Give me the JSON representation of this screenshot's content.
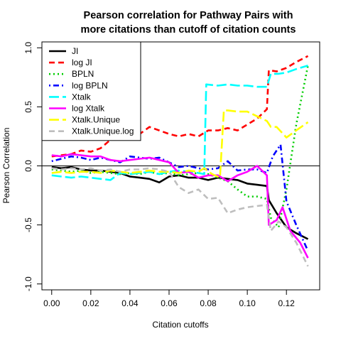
{
  "chart_data": {
    "type": "line",
    "title": "Pearson correlation for Pathway Pairs with",
    "subtitle": "more citations than cutoff of citation counts",
    "xlabel": "Citation cutoffs",
    "ylabel": "Pearson Correlation",
    "xlim": [
      -0.005,
      0.137
    ],
    "ylim": [
      -1.05,
      1.05
    ],
    "x_ticks": [
      "0.00",
      "0.02",
      "0.04",
      "0.06",
      "0.08",
      "0.10",
      "0.12"
    ],
    "x_tick_values": [
      0,
      0.02,
      0.04,
      0.06,
      0.08,
      0.1,
      0.12
    ],
    "y_ticks": [
      "-1.0",
      "-0.5",
      "0.0",
      "0.5",
      "1.0"
    ],
    "y_tick_values": [
      -1,
      -0.5,
      0,
      0.5,
      1
    ],
    "reference_line_y": 0,
    "legend_position": "top-left",
    "series": [
      {
        "name": "JI",
        "color": "#000000",
        "dash": "solid",
        "x": [
          0,
          0.005,
          0.01,
          0.015,
          0.02,
          0.025,
          0.03,
          0.035,
          0.04,
          0.045,
          0.05,
          0.055,
          0.06,
          0.065,
          0.07,
          0.075,
          0.08,
          0.085,
          0.09,
          0.095,
          0.1,
          0.105,
          0.11,
          0.111,
          0.115,
          0.12,
          0.125,
          0.131
        ],
        "y": [
          -0.01,
          -0.02,
          -0.01,
          -0.03,
          -0.04,
          -0.04,
          -0.05,
          -0.06,
          -0.09,
          -0.1,
          -0.11,
          -0.14,
          -0.09,
          -0.08,
          -0.1,
          -0.1,
          -0.12,
          -0.1,
          -0.11,
          -0.12,
          -0.15,
          -0.16,
          -0.17,
          -0.29,
          -0.4,
          -0.52,
          -0.57,
          -0.62
        ]
      },
      {
        "name": "log JI",
        "color": "#ff0000",
        "dash": "dashed",
        "x": [
          0,
          0.005,
          0.01,
          0.015,
          0.02,
          0.025,
          0.03,
          0.035,
          0.04,
          0.045,
          0.05,
          0.055,
          0.06,
          0.065,
          0.07,
          0.075,
          0.08,
          0.085,
          0.09,
          0.095,
          0.1,
          0.105,
          0.11,
          0.111,
          0.115,
          0.12,
          0.125,
          0.131
        ],
        "y": [
          0.08,
          0.09,
          0.1,
          0.13,
          0.12,
          0.15,
          0.22,
          0.25,
          0.28,
          0.27,
          0.33,
          0.3,
          0.27,
          0.25,
          0.27,
          0.25,
          0.3,
          0.3,
          0.32,
          0.3,
          0.35,
          0.4,
          0.48,
          0.81,
          0.8,
          0.83,
          0.88,
          0.93
        ]
      },
      {
        "name": "BPLN",
        "color": "#00cd00",
        "dash": "dotted",
        "x": [
          0,
          0.005,
          0.01,
          0.015,
          0.02,
          0.025,
          0.03,
          0.035,
          0.04,
          0.045,
          0.05,
          0.055,
          0.06,
          0.065,
          0.07,
          0.075,
          0.08,
          0.085,
          0.09,
          0.095,
          0.1,
          0.105,
          0.11,
          0.112,
          0.116,
          0.12,
          0.125,
          0.131
        ],
        "y": [
          -0.03,
          -0.04,
          -0.05,
          -0.04,
          -0.06,
          -0.05,
          -0.06,
          -0.07,
          -0.06,
          -0.07,
          -0.05,
          -0.07,
          -0.06,
          -0.08,
          -0.07,
          -0.06,
          -0.07,
          -0.1,
          -0.13,
          -0.2,
          -0.26,
          -0.26,
          -0.28,
          -0.44,
          -0.52,
          -0.2,
          0.35,
          0.85
        ]
      },
      {
        "name": "log BPLN",
        "color": "#0000ff",
        "dash": "dotdash",
        "x": [
          0,
          0.005,
          0.01,
          0.015,
          0.02,
          0.025,
          0.03,
          0.035,
          0.04,
          0.045,
          0.05,
          0.055,
          0.06,
          0.065,
          0.07,
          0.075,
          0.08,
          0.085,
          0.09,
          0.095,
          0.1,
          0.105,
          0.11,
          0.113,
          0.117,
          0.12,
          0.125,
          0.131
        ],
        "y": [
          0.04,
          0.06,
          0.08,
          0.07,
          0.05,
          0.07,
          0.05,
          0.03,
          0.08,
          0.07,
          0.06,
          0.07,
          0.03,
          -0.01,
          0.0,
          -0.02,
          -0.03,
          -0.02,
          0.04,
          -0.04,
          -0.03,
          -0.03,
          -0.06,
          0.08,
          0.18,
          -0.3,
          -0.5,
          -0.72
        ]
      },
      {
        "name": "Xtalk",
        "color": "#00ffff",
        "dash": "longdash",
        "x": [
          0,
          0.005,
          0.01,
          0.015,
          0.02,
          0.025,
          0.03,
          0.035,
          0.04,
          0.045,
          0.05,
          0.055,
          0.06,
          0.065,
          0.07,
          0.075,
          0.078,
          0.079,
          0.085,
          0.09,
          0.095,
          0.1,
          0.105,
          0.11,
          0.112,
          0.116,
          0.12,
          0.125,
          0.131
        ],
        "y": [
          -0.08,
          -0.09,
          -0.1,
          -0.09,
          -0.1,
          -0.11,
          -0.12,
          -0.06,
          -0.07,
          -0.06,
          -0.05,
          -0.07,
          -0.05,
          -0.04,
          -0.05,
          -0.06,
          -0.07,
          0.69,
          0.68,
          0.69,
          0.68,
          0.68,
          0.67,
          0.67,
          0.78,
          0.78,
          0.79,
          0.82,
          0.85
        ]
      },
      {
        "name": "log Xtalk",
        "color": "#ff00ff",
        "dash": "solid",
        "x": [
          0,
          0.005,
          0.01,
          0.015,
          0.02,
          0.025,
          0.03,
          0.035,
          0.04,
          0.045,
          0.05,
          0.055,
          0.06,
          0.065,
          0.07,
          0.075,
          0.08,
          0.085,
          0.09,
          0.095,
          0.1,
          0.105,
          0.11,
          0.111,
          0.115,
          0.118,
          0.122,
          0.127,
          0.131
        ],
        "y": [
          0.09,
          0.08,
          0.1,
          0.09,
          0.08,
          0.08,
          0.05,
          0.04,
          0.05,
          0.06,
          0.07,
          0.05,
          0.03,
          -0.06,
          -0.05,
          -0.1,
          -0.08,
          -0.08,
          -0.13,
          -0.08,
          -0.05,
          0.0,
          -0.08,
          -0.5,
          -0.46,
          -0.35,
          -0.55,
          -0.65,
          -0.78
        ]
      },
      {
        "name": "Xtalk.Unique",
        "color": "#ffff00",
        "dash": "longdash",
        "x": [
          0,
          0.005,
          0.01,
          0.015,
          0.02,
          0.025,
          0.03,
          0.035,
          0.04,
          0.045,
          0.05,
          0.055,
          0.06,
          0.065,
          0.07,
          0.075,
          0.078,
          0.082,
          0.086,
          0.088,
          0.09,
          0.095,
          0.1,
          0.105,
          0.11,
          0.112,
          0.115,
          0.12,
          0.125,
          0.131
        ],
        "y": [
          -0.06,
          -0.05,
          -0.06,
          -0.05,
          -0.05,
          -0.06,
          -0.04,
          -0.05,
          -0.06,
          -0.05,
          -0.04,
          -0.05,
          -0.05,
          -0.06,
          -0.04,
          -0.05,
          -0.02,
          -0.07,
          -0.1,
          0.47,
          0.47,
          0.46,
          0.46,
          0.42,
          0.38,
          0.33,
          0.33,
          0.24,
          0.3,
          0.37
        ]
      },
      {
        "name": "Xtalk.Unique.log",
        "color": "#bebebe",
        "dash": "dashed",
        "x": [
          0,
          0.005,
          0.01,
          0.015,
          0.02,
          0.025,
          0.03,
          0.035,
          0.04,
          0.045,
          0.05,
          0.055,
          0.06,
          0.065,
          0.07,
          0.075,
          0.08,
          0.085,
          0.09,
          0.095,
          0.1,
          0.105,
          0.11,
          0.112,
          0.116,
          0.12,
          0.125,
          0.131
        ],
        "y": [
          -0.02,
          -0.03,
          -0.02,
          -0.03,
          -0.02,
          -0.04,
          -0.03,
          -0.05,
          -0.03,
          -0.03,
          -0.02,
          -0.03,
          -0.05,
          -0.18,
          -0.23,
          -0.2,
          -0.28,
          -0.27,
          -0.4,
          -0.37,
          -0.35,
          -0.34,
          -0.33,
          -0.55,
          -0.47,
          -0.52,
          -0.65,
          -0.85
        ]
      }
    ]
  }
}
